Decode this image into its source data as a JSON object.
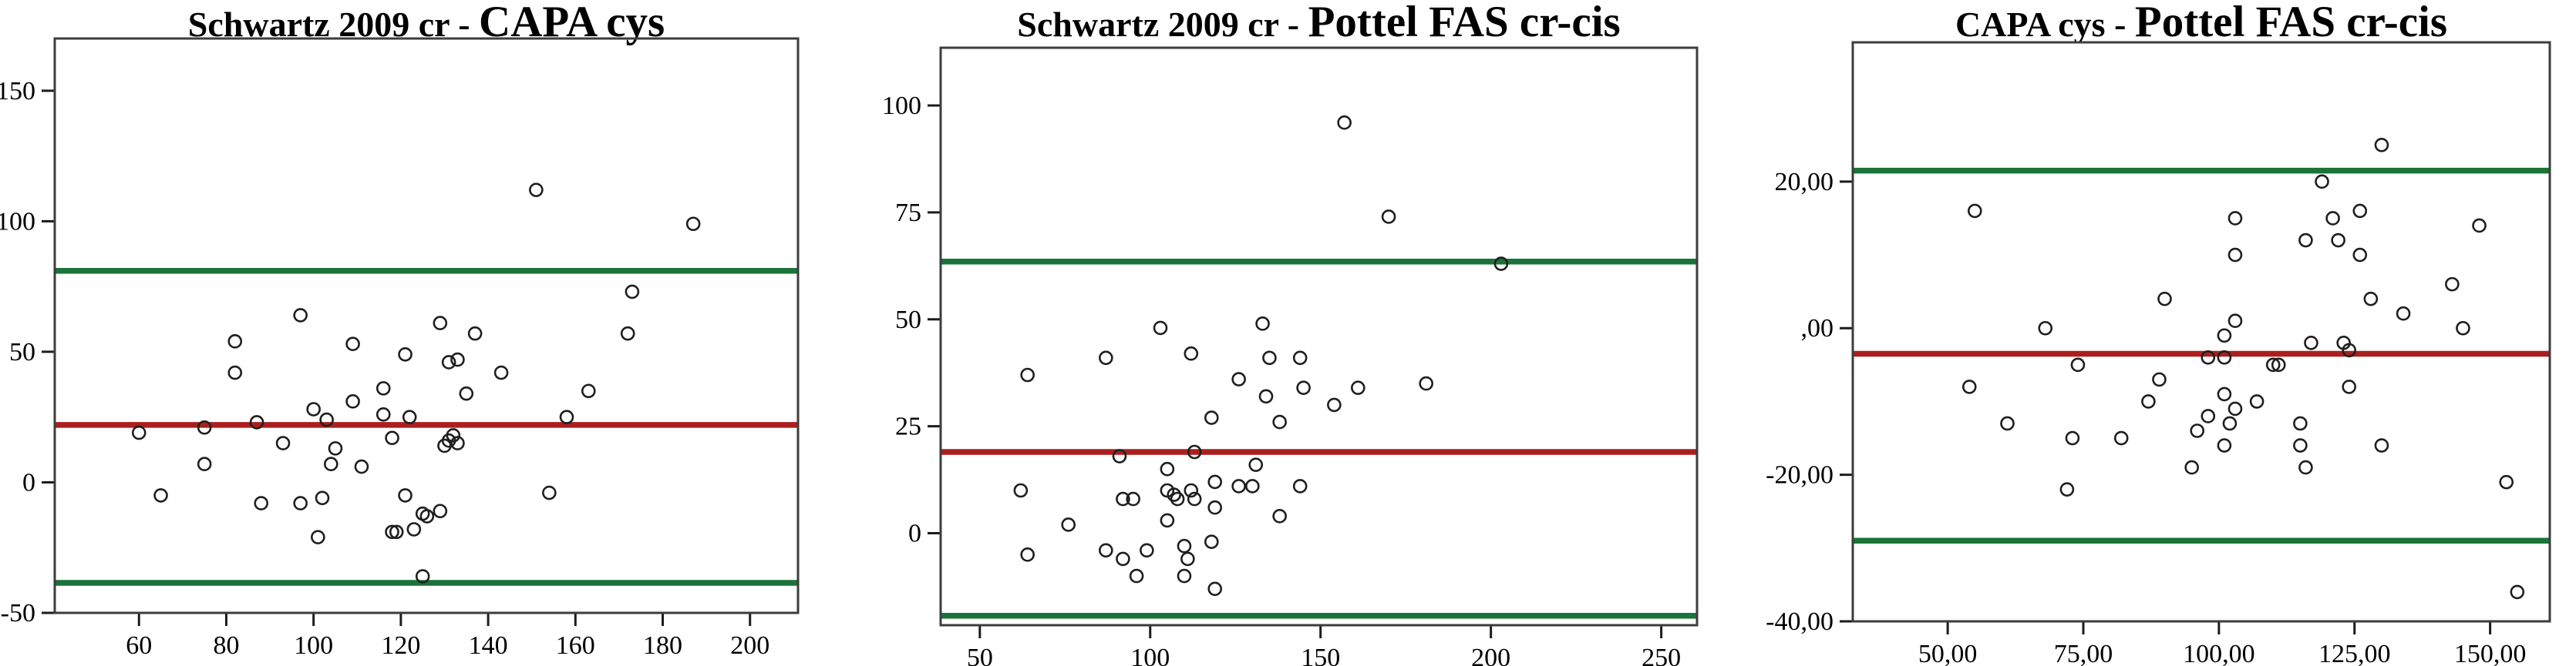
{
  "figure": {
    "background": "#ffffff",
    "description": "Three Bland-Altman agreement scatter plots with mean line and limits of agreement"
  },
  "colors": {
    "loa_line_green": "#1a7338",
    "mean_line_red": "#ab1f1f",
    "marker_stroke": "#1f1f1f",
    "box_border": "#3d3d3d",
    "tick_color": "#1c1c1c",
    "text_color": "#000000"
  },
  "chart_data": [
    {
      "type": "scatter",
      "title": "Schwartz 2009 cr - CAPA cys",
      "title_parts": [
        {
          "text": "Schwartz 2009 cr - "
        },
        {
          "text": "CAPA cys"
        }
      ],
      "xlim": [
        40.7,
        211
      ],
      "ylim": [
        -50,
        170
      ],
      "grid": false,
      "legend": null,
      "x_ticks": {
        "values": [
          60,
          80,
          100,
          120,
          140,
          160,
          180,
          200
        ],
        "labels": [
          "60",
          "80",
          "100",
          "120",
          "140",
          "160",
          "180",
          "200"
        ]
      },
      "y_ticks": {
        "values": [
          150,
          100,
          50,
          0,
          -50
        ],
        "labels": [
          "150",
          "100",
          "50",
          "0",
          "-50"
        ]
      },
      "lines": {
        "upper_loa": 81,
        "mean": 22,
        "lower_loa": -38.5
      },
      "points": [
        [
          151,
          112
        ],
        [
          187,
          99
        ],
        [
          173,
          73
        ],
        [
          172,
          57
        ],
        [
          97,
          64
        ],
        [
          82,
          54
        ],
        [
          109,
          53
        ],
        [
          129,
          61
        ],
        [
          137,
          57
        ],
        [
          121,
          49
        ],
        [
          131,
          46
        ],
        [
          133,
          47
        ],
        [
          82,
          42
        ],
        [
          143,
          42
        ],
        [
          116,
          36
        ],
        [
          135,
          34
        ],
        [
          163,
          35
        ],
        [
          109,
          31
        ],
        [
          100,
          28
        ],
        [
          116,
          26
        ],
        [
          103,
          24
        ],
        [
          122,
          25
        ],
        [
          158,
          25
        ],
        [
          87,
          23
        ],
        [
          75,
          21
        ],
        [
          60,
          19
        ],
        [
          132,
          18
        ],
        [
          131,
          16
        ],
        [
          130,
          14
        ],
        [
          133,
          15
        ],
        [
          118,
          17
        ],
        [
          93,
          15
        ],
        [
          105,
          13
        ],
        [
          104,
          7
        ],
        [
          111,
          6
        ],
        [
          75,
          7
        ],
        [
          65,
          -5
        ],
        [
          121,
          -5
        ],
        [
          154,
          -4
        ],
        [
          102,
          -6
        ],
        [
          88,
          -8
        ],
        [
          97,
          -8
        ],
        [
          125,
          -12
        ],
        [
          126,
          -13
        ],
        [
          129,
          -11
        ],
        [
          118,
          -19
        ],
        [
          119,
          -19
        ],
        [
          123,
          -18
        ],
        [
          101,
          -21
        ],
        [
          125,
          -36
        ]
      ]
    },
    {
      "type": "scatter",
      "title": "Schwartz 2009 cr - Pottel FAS cr-cis",
      "title_parts": [
        {
          "text": "Schwartz 2009 cr - "
        },
        {
          "text": "Pottel FAS cr-cis"
        }
      ],
      "xlim": [
        38.5,
        260.5
      ],
      "ylim": [
        -21.5,
        113.5
      ],
      "grid": false,
      "legend": null,
      "x_ticks": {
        "values": [
          50,
          100,
          150,
          200,
          250
        ],
        "labels": [
          "50",
          "100",
          "150",
          "200",
          "250"
        ]
      },
      "y_ticks": {
        "values": [
          100,
          75,
          50,
          25,
          0
        ],
        "labels": [
          "100",
          "75",
          "50",
          "25",
          "0"
        ]
      },
      "lines": {
        "upper_loa": 63.5,
        "mean": 19,
        "lower_loa": -19.3
      },
      "points": [
        [
          157,
          96
        ],
        [
          170,
          74
        ],
        [
          203,
          63
        ],
        [
          103,
          48
        ],
        [
          133,
          49
        ],
        [
          112,
          42
        ],
        [
          87,
          41
        ],
        [
          135,
          41
        ],
        [
          144,
          41
        ],
        [
          64,
          37
        ],
        [
          126,
          36
        ],
        [
          181,
          35
        ],
        [
          161,
          34
        ],
        [
          145,
          34
        ],
        [
          134,
          32
        ],
        [
          154,
          30
        ],
        [
          118,
          27
        ],
        [
          138,
          26
        ],
        [
          91,
          18
        ],
        [
          113,
          19
        ],
        [
          105,
          15
        ],
        [
          131,
          16
        ],
        [
          119,
          12
        ],
        [
          126,
          11
        ],
        [
          130,
          11
        ],
        [
          144,
          11
        ],
        [
          62,
          10
        ],
        [
          105,
          10
        ],
        [
          107,
          9
        ],
        [
          92,
          8
        ],
        [
          95,
          8
        ],
        [
          108,
          8
        ],
        [
          112,
          10
        ],
        [
          113,
          8
        ],
        [
          119,
          6
        ],
        [
          138,
          4
        ],
        [
          105,
          3
        ],
        [
          76,
          2
        ],
        [
          118,
          -2
        ],
        [
          110,
          -3
        ],
        [
          64,
          -5
        ],
        [
          87,
          -4
        ],
        [
          99,
          -4
        ],
        [
          92,
          -6
        ],
        [
          111,
          -6
        ],
        [
          96,
          -10
        ],
        [
          110,
          -10
        ],
        [
          119,
          -13
        ]
      ]
    },
    {
      "type": "scatter",
      "title": "CAPA cys - Pottel FAS cr-cis",
      "title_parts": [
        {
          "text": "CAPA cys - "
        },
        {
          "text": "Pottel FAS cr-cis"
        }
      ],
      "xlim": [
        32.5,
        161
      ],
      "ylim": [
        -40,
        39
      ],
      "grid": false,
      "legend": null,
      "x_ticks": {
        "values": [
          50,
          75,
          100,
          125,
          150
        ],
        "labels": [
          "50,00",
          "75,00",
          "100,00",
          "125,00",
          "150,00"
        ]
      },
      "y_ticks": {
        "values": [
          20,
          0,
          -20,
          -40
        ],
        "labels": [
          "20,00",
          ",00",
          "-20,00",
          "-40,00"
        ]
      },
      "lines": {
        "upper_loa": 21.5,
        "mean": -3.5,
        "lower_loa": -29
      },
      "points": [
        [
          130,
          25
        ],
        [
          119,
          20
        ],
        [
          55,
          16
        ],
        [
          103,
          15
        ],
        [
          126,
          16
        ],
        [
          121,
          15
        ],
        [
          148,
          14
        ],
        [
          122,
          12
        ],
        [
          116,
          12
        ],
        [
          126,
          10
        ],
        [
          103,
          10
        ],
        [
          143,
          6
        ],
        [
          128,
          4
        ],
        [
          90,
          4
        ],
        [
          134,
          2
        ],
        [
          103,
          1
        ],
        [
          68,
          0
        ],
        [
          145,
          0
        ],
        [
          101,
          -1
        ],
        [
          117,
          -2
        ],
        [
          123,
          -2
        ],
        [
          98,
          -4
        ],
        [
          101,
          -4
        ],
        [
          124,
          -3
        ],
        [
          74,
          -5
        ],
        [
          110,
          -5
        ],
        [
          111,
          -5
        ],
        [
          89,
          -7
        ],
        [
          54,
          -8
        ],
        [
          124,
          -8
        ],
        [
          101,
          -9
        ],
        [
          87,
          -10
        ],
        [
          107,
          -10
        ],
        [
          98,
          -12
        ],
        [
          103,
          -11
        ],
        [
          102,
          -13
        ],
        [
          61,
          -13
        ],
        [
          115,
          -13
        ],
        [
          96,
          -14
        ],
        [
          73,
          -15
        ],
        [
          82,
          -15
        ],
        [
          101,
          -16
        ],
        [
          115,
          -16
        ],
        [
          130,
          -16
        ],
        [
          95,
          -19
        ],
        [
          116,
          -19
        ],
        [
          72,
          -22
        ],
        [
          153,
          -21
        ],
        [
          155,
          -36
        ]
      ]
    }
  ]
}
